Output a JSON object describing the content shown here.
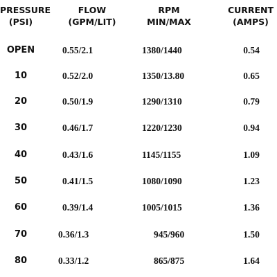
{
  "headers": {
    "pressure": [
      "PRESSURE",
      "(PSI)"
    ],
    "flow": [
      "FLOW",
      "(GPM/LIT)"
    ],
    "rpm": [
      "RPM",
      "MIN/MAX"
    ],
    "current": [
      "CURRENT",
      "(AMPS)"
    ]
  },
  "rows": [
    {
      "pressure": "OPEN",
      "flow": "0.55/2.1",
      "rpm": "1380/1440",
      "current": "0.54"
    },
    {
      "pressure": "10",
      "flow": "0.52/2.0",
      "rpm": "1350/13.80",
      "current": "0.65"
    },
    {
      "pressure": "20",
      "flow": "0.50/1.9",
      "rpm": "1290/1310",
      "current": "0.79"
    },
    {
      "pressure": "30",
      "flow": "0.46/1.7",
      "rpm": "1220/1230",
      "current": "0.94"
    },
    {
      "pressure": "40",
      "flow": "0.43/1.6",
      "rpm": "1145/1155",
      "current": "1.09"
    },
    {
      "pressure": "50",
      "flow": "0.41/1.5",
      "rpm": "1080/1090",
      "current": "1.23"
    },
    {
      "pressure": "60",
      "flow": "0.39/1.4",
      "rpm": "1005/1015",
      "current": "1.36"
    },
    {
      "pressure": "70",
      "flow": "0.36/1.3",
      "rpm": "945/960",
      "current": "1.50"
    },
    {
      "pressure": "80",
      "flow": "0.33/1.2",
      "rpm": "865/875",
      "current": "1.64"
    }
  ]
}
